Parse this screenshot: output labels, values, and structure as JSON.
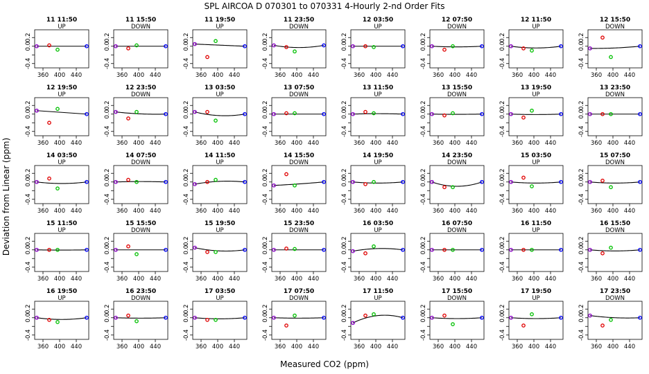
{
  "title": "SPL   AIRCOA D   070301 to 070331   4-Hourly 2-nd Order Fits",
  "ylabel": "Deviation from Linear (ppm)",
  "xlabel": "Measured CO2 (ppm)",
  "colors": {
    "fit": "#000000",
    "std1": "#8b00c8",
    "std2": "#e00000",
    "std3": "#00c000",
    "std4": "#0000ff"
  },
  "chart_data": {
    "type": "scatter",
    "layout": "5 rows x 8 columns small multiples",
    "x_ticks": [
      360,
      400,
      440
    ],
    "y_ticks": [
      -0.4,
      -0.2,
      0.0,
      0.2
    ],
    "y_tick_labels": [
      "-0.4",
      "",
      "0.0",
      "0.2"
    ],
    "xlim": [
      340,
      470
    ],
    "ylim": [
      -0.5,
      0.38
    ],
    "std_x": [
      345,
      375,
      395,
      465
    ],
    "panels": [
      {
        "title": "11 11:50",
        "dir": "UP",
        "pts": [
          0.0,
          0.02,
          -0.08,
          0.0
        ],
        "curv": 0.0
      },
      {
        "title": "11 15:50",
        "dir": "DOWN",
        "pts": [
          0.0,
          -0.05,
          0.02,
          0.0
        ],
        "curv": 0.0
      },
      {
        "title": "11 19:50",
        "dir": "UP",
        "pts": [
          0.05,
          -0.25,
          0.12,
          0.0
        ],
        "curv": 0.0
      },
      {
        "title": "11 23:50",
        "dir": "DOWN",
        "pts": [
          0.02,
          -0.02,
          -0.12,
          0.02
        ],
        "curv": 1.0
      },
      {
        "title": "12 03:50",
        "dir": "UP",
        "pts": [
          0.0,
          0.0,
          -0.02,
          0.0
        ],
        "curv": 0.0
      },
      {
        "title": "12 07:50",
        "dir": "DOWN",
        "pts": [
          0.0,
          -0.08,
          0.0,
          0.0
        ],
        "curv": 0.3
      },
      {
        "title": "12 11:50",
        "dir": "UP",
        "pts": [
          0.0,
          -0.05,
          -0.1,
          0.0
        ],
        "curv": 0.8
      },
      {
        "title": "12 15:50",
        "dir": "DOWN",
        "pts": [
          -0.05,
          0.2,
          -0.25,
          0.0
        ],
        "curv": 0.3
      },
      {
        "title": "12 19:50",
        "dir": "UP",
        "pts": [
          0.08,
          -0.2,
          0.12,
          0.0
        ],
        "curv": 0.0
      },
      {
        "title": "12 23:50",
        "dir": "DOWN",
        "pts": [
          0.05,
          -0.1,
          0.05,
          0.0
        ],
        "curv": 0.4
      },
      {
        "title": "13 03:50",
        "dir": "UP",
        "pts": [
          0.05,
          0.05,
          -0.15,
          0.0
        ],
        "curv": 1.2
      },
      {
        "title": "13 07:50",
        "dir": "DOWN",
        "pts": [
          0.0,
          0.02,
          0.02,
          0.0
        ],
        "curv": 0.0
      },
      {
        "title": "13 11:50",
        "dir": "UP",
        "pts": [
          0.0,
          0.05,
          0.02,
          0.0
        ],
        "curv": -0.2
      },
      {
        "title": "13 15:50",
        "dir": "DOWN",
        "pts": [
          0.0,
          -0.03,
          0.02,
          0.0
        ],
        "curv": 0.1
      },
      {
        "title": "13 19:50",
        "dir": "UP",
        "pts": [
          0.0,
          -0.08,
          0.08,
          0.0
        ],
        "curv": 0.2
      },
      {
        "title": "13 23:50",
        "dir": "DOWN",
        "pts": [
          0.0,
          0.0,
          0.0,
          0.0
        ],
        "curv": 0.0
      },
      {
        "title": "14 03:50",
        "dir": "UP",
        "pts": [
          0.0,
          0.08,
          -0.15,
          0.0
        ],
        "curv": 0.7
      },
      {
        "title": "14 07:50",
        "dir": "DOWN",
        "pts": [
          0.0,
          0.05,
          0.0,
          0.0
        ],
        "curv": -0.2
      },
      {
        "title": "14 11:50",
        "dir": "UP",
        "pts": [
          -0.05,
          0.0,
          0.05,
          0.0
        ],
        "curv": -0.8
      },
      {
        "title": "14 15:50",
        "dir": "DOWN",
        "pts": [
          -0.08,
          0.18,
          -0.08,
          0.0
        ],
        "curv": 0.1
      },
      {
        "title": "14 19:50",
        "dir": "UP",
        "pts": [
          0.0,
          -0.05,
          0.0,
          0.0
        ],
        "curv": 0.5
      },
      {
        "title": "14 23:50",
        "dir": "DOWN",
        "pts": [
          0.0,
          -0.12,
          -0.12,
          0.0
        ],
        "curv": 2.0
      },
      {
        "title": "15 03:50",
        "dir": "UP",
        "pts": [
          0.0,
          0.1,
          -0.1,
          0.0
        ],
        "curv": 0.5
      },
      {
        "title": "15 07:50",
        "dir": "DOWN",
        "pts": [
          0.0,
          0.03,
          -0.12,
          0.0
        ],
        "curv": 0.5
      },
      {
        "title": "15 11:50",
        "dir": "UP",
        "pts": [
          0.0,
          0.0,
          0.0,
          0.0
        ],
        "curv": 0.1
      },
      {
        "title": "15 15:50",
        "dir": "DOWN",
        "pts": [
          0.0,
          0.08,
          -0.1,
          0.0
        ],
        "curv": 0.0
      },
      {
        "title": "15 19:50",
        "dir": "UP",
        "pts": [
          0.05,
          -0.05,
          -0.05,
          0.0
        ],
        "curv": 1.0
      },
      {
        "title": "15 23:50",
        "dir": "DOWN",
        "pts": [
          0.0,
          0.03,
          0.02,
          0.0
        ],
        "curv": 0.0
      },
      {
        "title": "16 03:50",
        "dir": "UP",
        "pts": [
          -0.03,
          -0.08,
          0.08,
          0.0
        ],
        "curv": -0.9
      },
      {
        "title": "16 07:50",
        "dir": "DOWN",
        "pts": [
          0.0,
          0.0,
          0.0,
          0.0
        ],
        "curv": 0.0
      },
      {
        "title": "16 11:50",
        "dir": "UP",
        "pts": [
          0.0,
          0.0,
          0.0,
          0.0
        ],
        "curv": 0.0
      },
      {
        "title": "16 15:50",
        "dir": "DOWN",
        "pts": [
          0.0,
          -0.08,
          0.05,
          0.0
        ],
        "curv": 0.5
      },
      {
        "title": "16 19:50",
        "dir": "UP",
        "pts": [
          0.0,
          -0.05,
          -0.1,
          0.0
        ],
        "curv": 0.8
      },
      {
        "title": "16 23:50",
        "dir": "DOWN",
        "pts": [
          0.0,
          0.05,
          -0.08,
          0.0
        ],
        "curv": 0.2
      },
      {
        "title": "17 03:50",
        "dir": "UP",
        "pts": [
          0.0,
          -0.05,
          -0.05,
          0.0
        ],
        "curv": 0.5
      },
      {
        "title": "17 07:50",
        "dir": "DOWN",
        "pts": [
          0.0,
          -0.18,
          0.05,
          0.0
        ],
        "curv": 0.2
      },
      {
        "title": "17 11:50",
        "dir": "UP",
        "pts": [
          -0.12,
          0.05,
          0.08,
          0.0
        ],
        "curv": -2.2
      },
      {
        "title": "17 15:50",
        "dir": "DOWN",
        "pts": [
          0.0,
          0.05,
          -0.15,
          0.0
        ],
        "curv": 0.4
      },
      {
        "title": "17 19:50",
        "dir": "UP",
        "pts": [
          0.0,
          -0.18,
          0.08,
          0.0
        ],
        "curv": 0.4
      },
      {
        "title": "17 23:50",
        "dir": "DOWN",
        "pts": [
          0.05,
          -0.18,
          -0.05,
          0.0
        ],
        "curv": 0.5
      }
    ]
  }
}
